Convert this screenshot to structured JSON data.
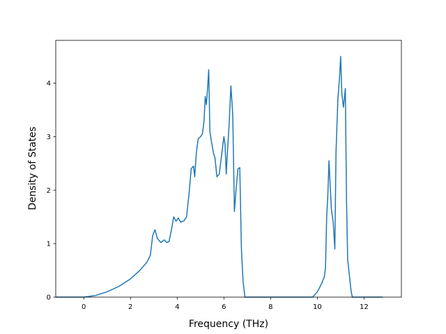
{
  "chart_data": {
    "type": "line",
    "title": "",
    "xlabel": "Frequency (THz)",
    "ylabel": "Density of States",
    "xlim": [
      -1.2,
      13.6
    ],
    "ylim": [
      0,
      4.8
    ],
    "x_ticks": [
      0,
      2,
      4,
      6,
      8,
      10,
      12
    ],
    "y_ticks": [
      0,
      1,
      2,
      3,
      4
    ],
    "x_tick_labels": [
      "0",
      "2",
      "4",
      "6",
      "8",
      "10",
      "12"
    ],
    "y_tick_labels": [
      "0",
      "1",
      "2",
      "3",
      "4"
    ],
    "grid": false,
    "legend": false,
    "line_color": "#1f77b4",
    "series": [
      {
        "x": [
          -1.2,
          0,
          0.5,
          1.0,
          1.5,
          2.0,
          2.4,
          2.7,
          2.85,
          2.95,
          3.05,
          3.15,
          3.3,
          3.45,
          3.55,
          3.65,
          3.75,
          3.85,
          3.95,
          4.05,
          4.15,
          4.3,
          4.4,
          4.5,
          4.6,
          4.7,
          4.75,
          4.82,
          4.9,
          5.0,
          5.08,
          5.15,
          5.2,
          5.25,
          5.3,
          5.35,
          5.4,
          5.45,
          5.55,
          5.62,
          5.7,
          5.8,
          5.9,
          6.0,
          6.05,
          6.1,
          6.15,
          6.22,
          6.3,
          6.38,
          6.45,
          6.52,
          6.6,
          6.68,
          6.75,
          6.82,
          6.9,
          7.0,
          8.0,
          9.0,
          9.8,
          10.0,
          10.1,
          10.2,
          10.3,
          10.35,
          10.4,
          10.45,
          10.5,
          10.55,
          10.6,
          10.68,
          10.75,
          10.8,
          10.88,
          10.95,
          11.0,
          11.05,
          11.12,
          11.2,
          11.25,
          11.3,
          11.35,
          11.45,
          11.5,
          11.55,
          11.62,
          11.7,
          11.8,
          12.0,
          12.8
        ],
        "y": [
          0,
          0,
          0.03,
          0.1,
          0.2,
          0.34,
          0.5,
          0.65,
          0.78,
          1.15,
          1.26,
          1.1,
          1.02,
          1.07,
          1.02,
          1.04,
          1.25,
          1.5,
          1.42,
          1.48,
          1.4,
          1.43,
          1.5,
          1.9,
          2.4,
          2.45,
          2.25,
          2.7,
          2.96,
          3.0,
          3.05,
          3.3,
          3.75,
          3.6,
          3.9,
          4.25,
          3.1,
          2.95,
          2.7,
          2.6,
          2.25,
          2.3,
          2.65,
          3.0,
          2.85,
          2.3,
          2.7,
          3.2,
          3.95,
          3.4,
          1.6,
          2.0,
          2.4,
          2.42,
          0.9,
          0.3,
          0,
          0,
          0,
          0,
          0,
          0.1,
          0.18,
          0.27,
          0.38,
          0.55,
          1.5,
          1.9,
          2.55,
          2.1,
          1.65,
          1.4,
          0.9,
          2.7,
          3.7,
          4.1,
          4.5,
          3.8,
          3.55,
          3.9,
          1.8,
          0.7,
          0.5,
          0.1,
          0,
          0,
          0,
          0,
          0,
          0,
          0
        ]
      }
    ]
  }
}
